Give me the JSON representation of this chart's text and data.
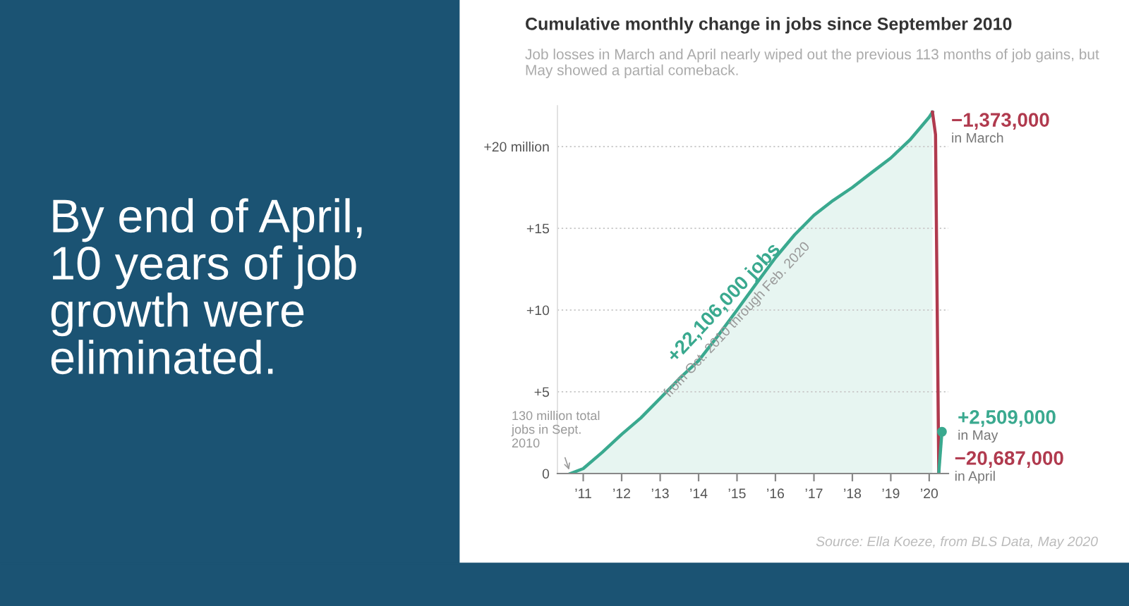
{
  "chart_data": {
    "type": "area",
    "title": "Cumulative monthly change in jobs since September 2010",
    "subtitle": "Job losses in March and April nearly wiped out the previous 113 months of job gains, but May showed a partial comeback.",
    "series": [
      {
        "color": "#3aa98f",
        "x": [
          "2010-09",
          "2011-01",
          "2011-07",
          "2012-01",
          "2012-07",
          "2013-01",
          "2013-07",
          "2014-01",
          "2014-07",
          "2015-01",
          "2015-07",
          "2016-01",
          "2016-07",
          "2017-01",
          "2017-07",
          "2018-01",
          "2018-07",
          "2019-01",
          "2019-07",
          "2020-01",
          "2020-02"
        ],
        "values": [
          0,
          0.3,
          1.3,
          2.4,
          3.4,
          4.6,
          5.8,
          6.9,
          8.4,
          10.0,
          11.6,
          13.2,
          14.6,
          15.8,
          16.7,
          17.5,
          18.4,
          19.3,
          20.4,
          21.8,
          22.106
        ]
      },
      {
        "type": "line",
        "color": "#b03a4e",
        "x": [
          "2020-02",
          "2020-03",
          "2020-04"
        ],
        "values": [
          22.106,
          20.733,
          0.046
        ]
      },
      {
        "type": "line",
        "color": "#3aa98f",
        "marker": "circle",
        "x": [
          "2020-04",
          "2020-05"
        ],
        "values": [
          0.046,
          2.555
        ]
      }
    ],
    "xlim": [
      "2010-05",
      "2020-07"
    ],
    "xticks": [
      {
        "value": "2011-01",
        "label": "’11"
      },
      {
        "value": "2012-01",
        "label": "’12"
      },
      {
        "value": "2013-01",
        "label": "’13"
      },
      {
        "value": "2014-01",
        "label": "’14"
      },
      {
        "value": "2015-01",
        "label": "’15"
      },
      {
        "value": "2016-01",
        "label": "’16"
      },
      {
        "value": "2017-01",
        "label": "’17"
      },
      {
        "value": "2018-01",
        "label": "’18"
      },
      {
        "value": "2019-01",
        "label": "’19"
      },
      {
        "value": "2020-01",
        "label": "’20"
      }
    ],
    "ylim": [
      0,
      22.5
    ],
    "yticks": [
      0,
      {
        "value": 5,
        "label": "+5"
      },
      {
        "value": 10,
        "label": "+10"
      },
      {
        "value": 15,
        "label": "+15"
      },
      {
        "value": 20,
        "label": "+20 million"
      }
    ],
    "grid": "y",
    "annotations": [
      {
        "text": "−1,373,000\nin March",
        "x": "2020-03",
        "y": 20.733
      },
      {
        "text": "−20,687,000\nin April",
        "x": "2020-04",
        "y": 0.046
      },
      {
        "text": "+2,509,000\nin May",
        "x": "2020-05",
        "y": 2.555
      },
      {
        "text": "+22,106,000 jobs\nfrom Oct. 2010 through Feb. 2020",
        "x": "2014-09",
        "y": 9.0
      },
      {
        "text": "130 million total\njobs in Sept.\n2010",
        "x": "2010-09",
        "y": 0
      },
      "Source: Ella Koeze, from BLS Data, May 2020",
      "By end of April,\n10 years of job\ngrowth were\neliminated."
    ]
  }
}
